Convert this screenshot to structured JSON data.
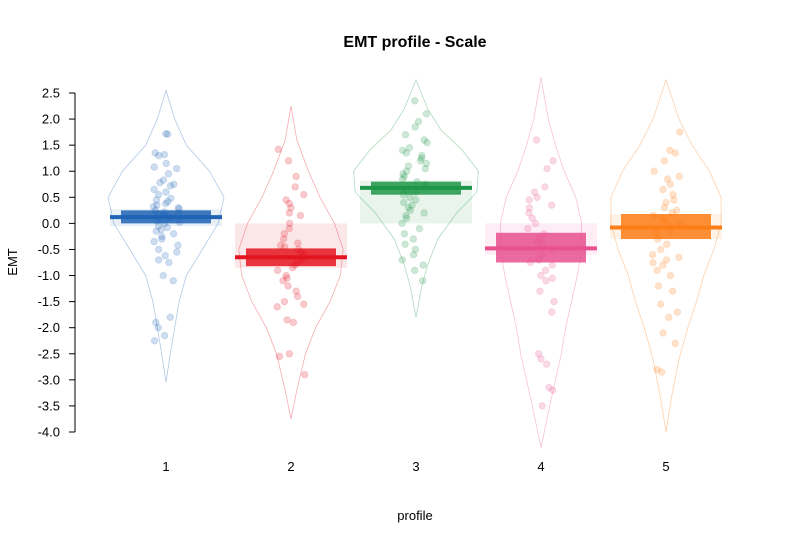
{
  "chart_data": {
    "type": "pirateplot",
    "title": "EMT profile - Scale",
    "xlabel": "profile",
    "ylabel": "EMT",
    "ylim": [
      -4.0,
      2.5
    ],
    "yticks": [
      "2.5",
      "2.0",
      "1.5",
      "1.0",
      "0.5",
      "0.0",
      "-0.5",
      "-1.0",
      "-1.5",
      "-2.0",
      "-2.5",
      "-3.0",
      "-3.5",
      "-4.0"
    ],
    "categories": [
      "1",
      "2",
      "3",
      "4",
      "5"
    ],
    "groups": [
      {
        "label": "1",
        "color": "#1f63b5",
        "mean": 0.12,
        "ci": [
          0.0,
          0.25
        ],
        "hdi": [
          -0.05,
          0.27
        ],
        "points": [
          1.72,
          1.71,
          1.35,
          1.3,
          1.32,
          1.15,
          1.08,
          1.05,
          0.95,
          0.83,
          0.78,
          0.75,
          0.72,
          0.65,
          0.6,
          0.55,
          0.48,
          0.45,
          0.42,
          0.38,
          0.35,
          0.32,
          0.3,
          0.28,
          0.25,
          0.22,
          0.2,
          0.18,
          0.15,
          0.12,
          0.1,
          0.08,
          0.05,
          0.02,
          0.0,
          -0.05,
          -0.08,
          -0.12,
          -0.15,
          -0.2,
          -0.25,
          -0.3,
          -0.35,
          -0.42,
          -0.5,
          -0.55,
          -0.62,
          -0.7,
          -0.75,
          -1.0,
          -1.1,
          -1.8,
          -1.9,
          -2.0,
          -2.15,
          -2.25
        ]
      },
      {
        "label": "2",
        "color": "#e4141f",
        "mean": -0.65,
        "ci": [
          -0.82,
          -0.48
        ],
        "hdi": [
          -0.85,
          0.0
        ],
        "points": [
          1.42,
          1.2,
          0.9,
          0.7,
          0.55,
          0.45,
          0.38,
          0.3,
          0.2,
          0.15,
          0.0,
          -0.1,
          -0.2,
          -0.3,
          -0.38,
          -0.42,
          -0.45,
          -0.5,
          -0.55,
          -0.6,
          -0.65,
          -0.7,
          -0.75,
          -0.8,
          -0.85,
          -0.9,
          -1.0,
          -1.05,
          -1.1,
          -1.2,
          -1.3,
          -1.4,
          -1.5,
          -1.55,
          -1.6,
          -1.85,
          -1.9,
          -2.5,
          -2.55,
          -2.9
        ]
      },
      {
        "label": "3",
        "color": "#1e9648",
        "mean": 0.68,
        "ci": [
          0.55,
          0.8
        ],
        "hdi": [
          0.0,
          0.82
        ],
        "points": [
          2.35,
          2.1,
          1.95,
          1.85,
          1.7,
          1.6,
          1.55,
          1.45,
          1.4,
          1.35,
          1.3,
          1.25,
          1.2,
          1.15,
          1.1,
          1.05,
          1.0,
          0.95,
          0.9,
          0.85,
          0.8,
          0.75,
          0.7,
          0.65,
          0.6,
          0.55,
          0.5,
          0.45,
          0.4,
          0.35,
          0.3,
          0.25,
          0.2,
          0.15,
          0.1,
          0.0,
          -0.1,
          -0.2,
          -0.3,
          -0.4,
          -0.5,
          -0.6,
          -0.7,
          -0.8,
          -0.9,
          -1.1
        ]
      },
      {
        "label": "4",
        "color": "#e8508f",
        "mean": -0.48,
        "ci": [
          -0.75,
          -0.18
        ],
        "hdi": [
          -0.6,
          0.0
        ],
        "points": [
          1.6,
          1.2,
          1.05,
          0.7,
          0.6,
          0.5,
          0.45,
          0.35,
          0.3,
          0.2,
          0.1,
          0.0,
          -0.1,
          -0.2,
          -0.3,
          -0.35,
          -0.4,
          -0.5,
          -0.6,
          -0.7,
          -0.75,
          -0.8,
          -0.9,
          -1.0,
          -1.05,
          -1.1,
          -1.3,
          -1.5,
          -1.7,
          -2.5,
          -2.6,
          -2.7,
          -3.15,
          -3.2,
          -3.5
        ]
      },
      {
        "label": "5",
        "color": "#fd7d16",
        "mean": -0.08,
        "ci": [
          -0.3,
          0.18
        ],
        "hdi": [
          -0.3,
          0.18
        ],
        "points": [
          1.75,
          1.4,
          1.35,
          1.2,
          1.0,
          0.9,
          0.85,
          0.75,
          0.65,
          0.55,
          0.45,
          0.4,
          0.3,
          0.25,
          0.2,
          0.15,
          0.1,
          0.05,
          0.0,
          -0.05,
          -0.1,
          -0.15,
          -0.2,
          -0.3,
          -0.4,
          -0.5,
          -0.6,
          -0.65,
          -0.7,
          -0.75,
          -0.8,
          -0.9,
          -1.0,
          -1.2,
          -1.3,
          -1.55,
          -1.7,
          -1.8,
          -2.1,
          -2.3,
          -2.8,
          -2.85
        ]
      }
    ],
    "violins": [
      {
        "min": -3.05,
        "max": 2.55,
        "density": [
          [
            -3.05,
            0.0
          ],
          [
            -2.5,
            0.03
          ],
          [
            -2.0,
            0.06
          ],
          [
            -1.5,
            0.09
          ],
          [
            -1.0,
            0.14
          ],
          [
            -0.5,
            0.25
          ],
          [
            0.0,
            0.36
          ],
          [
            0.5,
            0.4
          ],
          [
            1.0,
            0.3
          ],
          [
            1.5,
            0.14
          ],
          [
            2.0,
            0.06
          ],
          [
            2.55,
            0.0
          ]
        ]
      },
      {
        "min": -3.75,
        "max": 2.25,
        "density": [
          [
            -3.75,
            0.0
          ],
          [
            -3.2,
            0.04
          ],
          [
            -2.5,
            0.1
          ],
          [
            -2.0,
            0.17
          ],
          [
            -1.5,
            0.27
          ],
          [
            -1.0,
            0.34
          ],
          [
            -0.5,
            0.36
          ],
          [
            0.0,
            0.3
          ],
          [
            0.5,
            0.2
          ],
          [
            1.0,
            0.12
          ],
          [
            1.6,
            0.04
          ],
          [
            2.25,
            0.0
          ]
        ]
      },
      {
        "min": -1.8,
        "max": 2.75,
        "density": [
          [
            -1.8,
            0.0
          ],
          [
            -1.2,
            0.04
          ],
          [
            -0.8,
            0.08
          ],
          [
            -0.3,
            0.15
          ],
          [
            0.2,
            0.28
          ],
          [
            0.6,
            0.42
          ],
          [
            1.0,
            0.43
          ],
          [
            1.4,
            0.32
          ],
          [
            1.8,
            0.17
          ],
          [
            2.2,
            0.08
          ],
          [
            2.75,
            0.0
          ]
        ]
      },
      {
        "min": -4.3,
        "max": 2.8,
        "density": [
          [
            -4.3,
            0.0
          ],
          [
            -3.5,
            0.06
          ],
          [
            -3.0,
            0.1
          ],
          [
            -2.5,
            0.14
          ],
          [
            -2.0,
            0.17
          ],
          [
            -1.5,
            0.21
          ],
          [
            -1.0,
            0.25
          ],
          [
            -0.5,
            0.28
          ],
          [
            0.0,
            0.28
          ],
          [
            0.5,
            0.24
          ],
          [
            1.0,
            0.16
          ],
          [
            1.5,
            0.1
          ],
          [
            2.0,
            0.05
          ],
          [
            2.8,
            0.0
          ]
        ]
      },
      {
        "min": -4.0,
        "max": 2.75,
        "density": [
          [
            -4.0,
            0.0
          ],
          [
            -3.3,
            0.04
          ],
          [
            -2.6,
            0.09
          ],
          [
            -2.0,
            0.15
          ],
          [
            -1.5,
            0.21
          ],
          [
            -1.0,
            0.26
          ],
          [
            -0.5,
            0.33
          ],
          [
            0.0,
            0.38
          ],
          [
            0.5,
            0.38
          ],
          [
            1.0,
            0.3
          ],
          [
            1.5,
            0.18
          ],
          [
            2.0,
            0.09
          ],
          [
            2.75,
            0.0
          ]
        ]
      }
    ]
  }
}
